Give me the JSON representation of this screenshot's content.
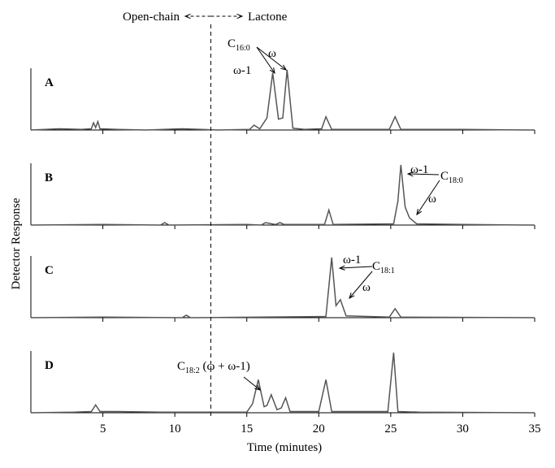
{
  "chart_data": [
    {
      "type": "line",
      "title": "A",
      "xlim": [
        0,
        35
      ],
      "ylim": [
        0,
        100
      ],
      "color": "#555555",
      "x": [
        0,
        2,
        3.5,
        4.2,
        4.35,
        4.5,
        4.65,
        4.8,
        6,
        8,
        10.5,
        13,
        15.2,
        15.5,
        15.9,
        16.4,
        16.8,
        17.2,
        17.5,
        17.8,
        18.2,
        19,
        20.2,
        20.5,
        20.9,
        24.9,
        25.3,
        25.7,
        30,
        35
      ],
      "values": [
        0,
        2,
        1,
        2,
        12,
        4,
        14,
        2,
        1,
        0,
        2,
        0,
        1,
        8,
        2,
        20,
        95,
        18,
        20,
        100,
        3,
        1,
        2,
        22,
        1,
        1,
        22,
        1,
        1,
        0
      ],
      "annotations": [
        {
          "text": "C",
          "subscript": "16:0"
        },
        {
          "text": "ω"
        },
        {
          "text": "ω-1"
        }
      ]
    },
    {
      "type": "line",
      "title": "B",
      "xlim": [
        0,
        35
      ],
      "ylim": [
        0,
        100
      ],
      "color": "#555555",
      "x": [
        0,
        5,
        9,
        9.3,
        9.6,
        15,
        16,
        16.3,
        17,
        17.3,
        17.6,
        20.4,
        20.7,
        21,
        25.2,
        25.5,
        25.7,
        26,
        26.3,
        26.8,
        30,
        35
      ],
      "values": [
        0,
        1,
        0,
        4,
        0,
        1,
        0,
        4,
        1,
        4,
        1,
        1,
        25,
        1,
        2,
        40,
        100,
        30,
        12,
        2,
        1,
        0
      ],
      "annotations": [
        {
          "text": "ω-1"
        },
        {
          "text": "C",
          "subscript": "18:0"
        },
        {
          "text": "ω"
        }
      ]
    },
    {
      "type": "line",
      "title": "C",
      "xlim": [
        0,
        35
      ],
      "ylim": [
        0,
        100
      ],
      "color": "#555555",
      "x": [
        0,
        5,
        10.5,
        10.8,
        11.1,
        16,
        20.5,
        20.9,
        21.2,
        21.5,
        21.9,
        24.9,
        25.3,
        25.7,
        35
      ],
      "values": [
        0,
        1,
        0,
        4,
        0,
        1,
        2,
        100,
        20,
        30,
        3,
        1,
        15,
        1,
        0
      ],
      "annotations": [
        {
          "text": "ω-1"
        },
        {
          "text": "C",
          "subscript": "18:1"
        },
        {
          "text": "ω"
        }
      ]
    },
    {
      "type": "line",
      "title": "D",
      "xlim": [
        0,
        35
      ],
      "ylim": [
        0,
        100
      ],
      "color": "#555555",
      "xlabel": "Time (minutes)",
      "xticks": [
        5,
        10,
        15,
        20,
        25,
        30,
        35
      ],
      "x": [
        0,
        3,
        4.2,
        4.5,
        4.8,
        6,
        9,
        15,
        15.4,
        15.8,
        16.2,
        16.4,
        16.7,
        17.1,
        17.4,
        17.7,
        18,
        20,
        20.5,
        20.9,
        24.8,
        25.2,
        25.5,
        27,
        35
      ],
      "values": [
        0,
        1,
        2,
        13,
        2,
        2,
        1,
        1,
        15,
        55,
        10,
        12,
        30,
        5,
        8,
        25,
        2,
        2,
        55,
        2,
        2,
        100,
        2,
        1,
        0
      ],
      "annotations": [
        {
          "text": "C",
          "subscript": "18:2",
          "suffix": " (ω + ω-1)"
        }
      ]
    }
  ],
  "ylabel": "Detector Response",
  "divider": {
    "x": 12.5,
    "left": "Open-chain",
    "right": "Lactone"
  }
}
